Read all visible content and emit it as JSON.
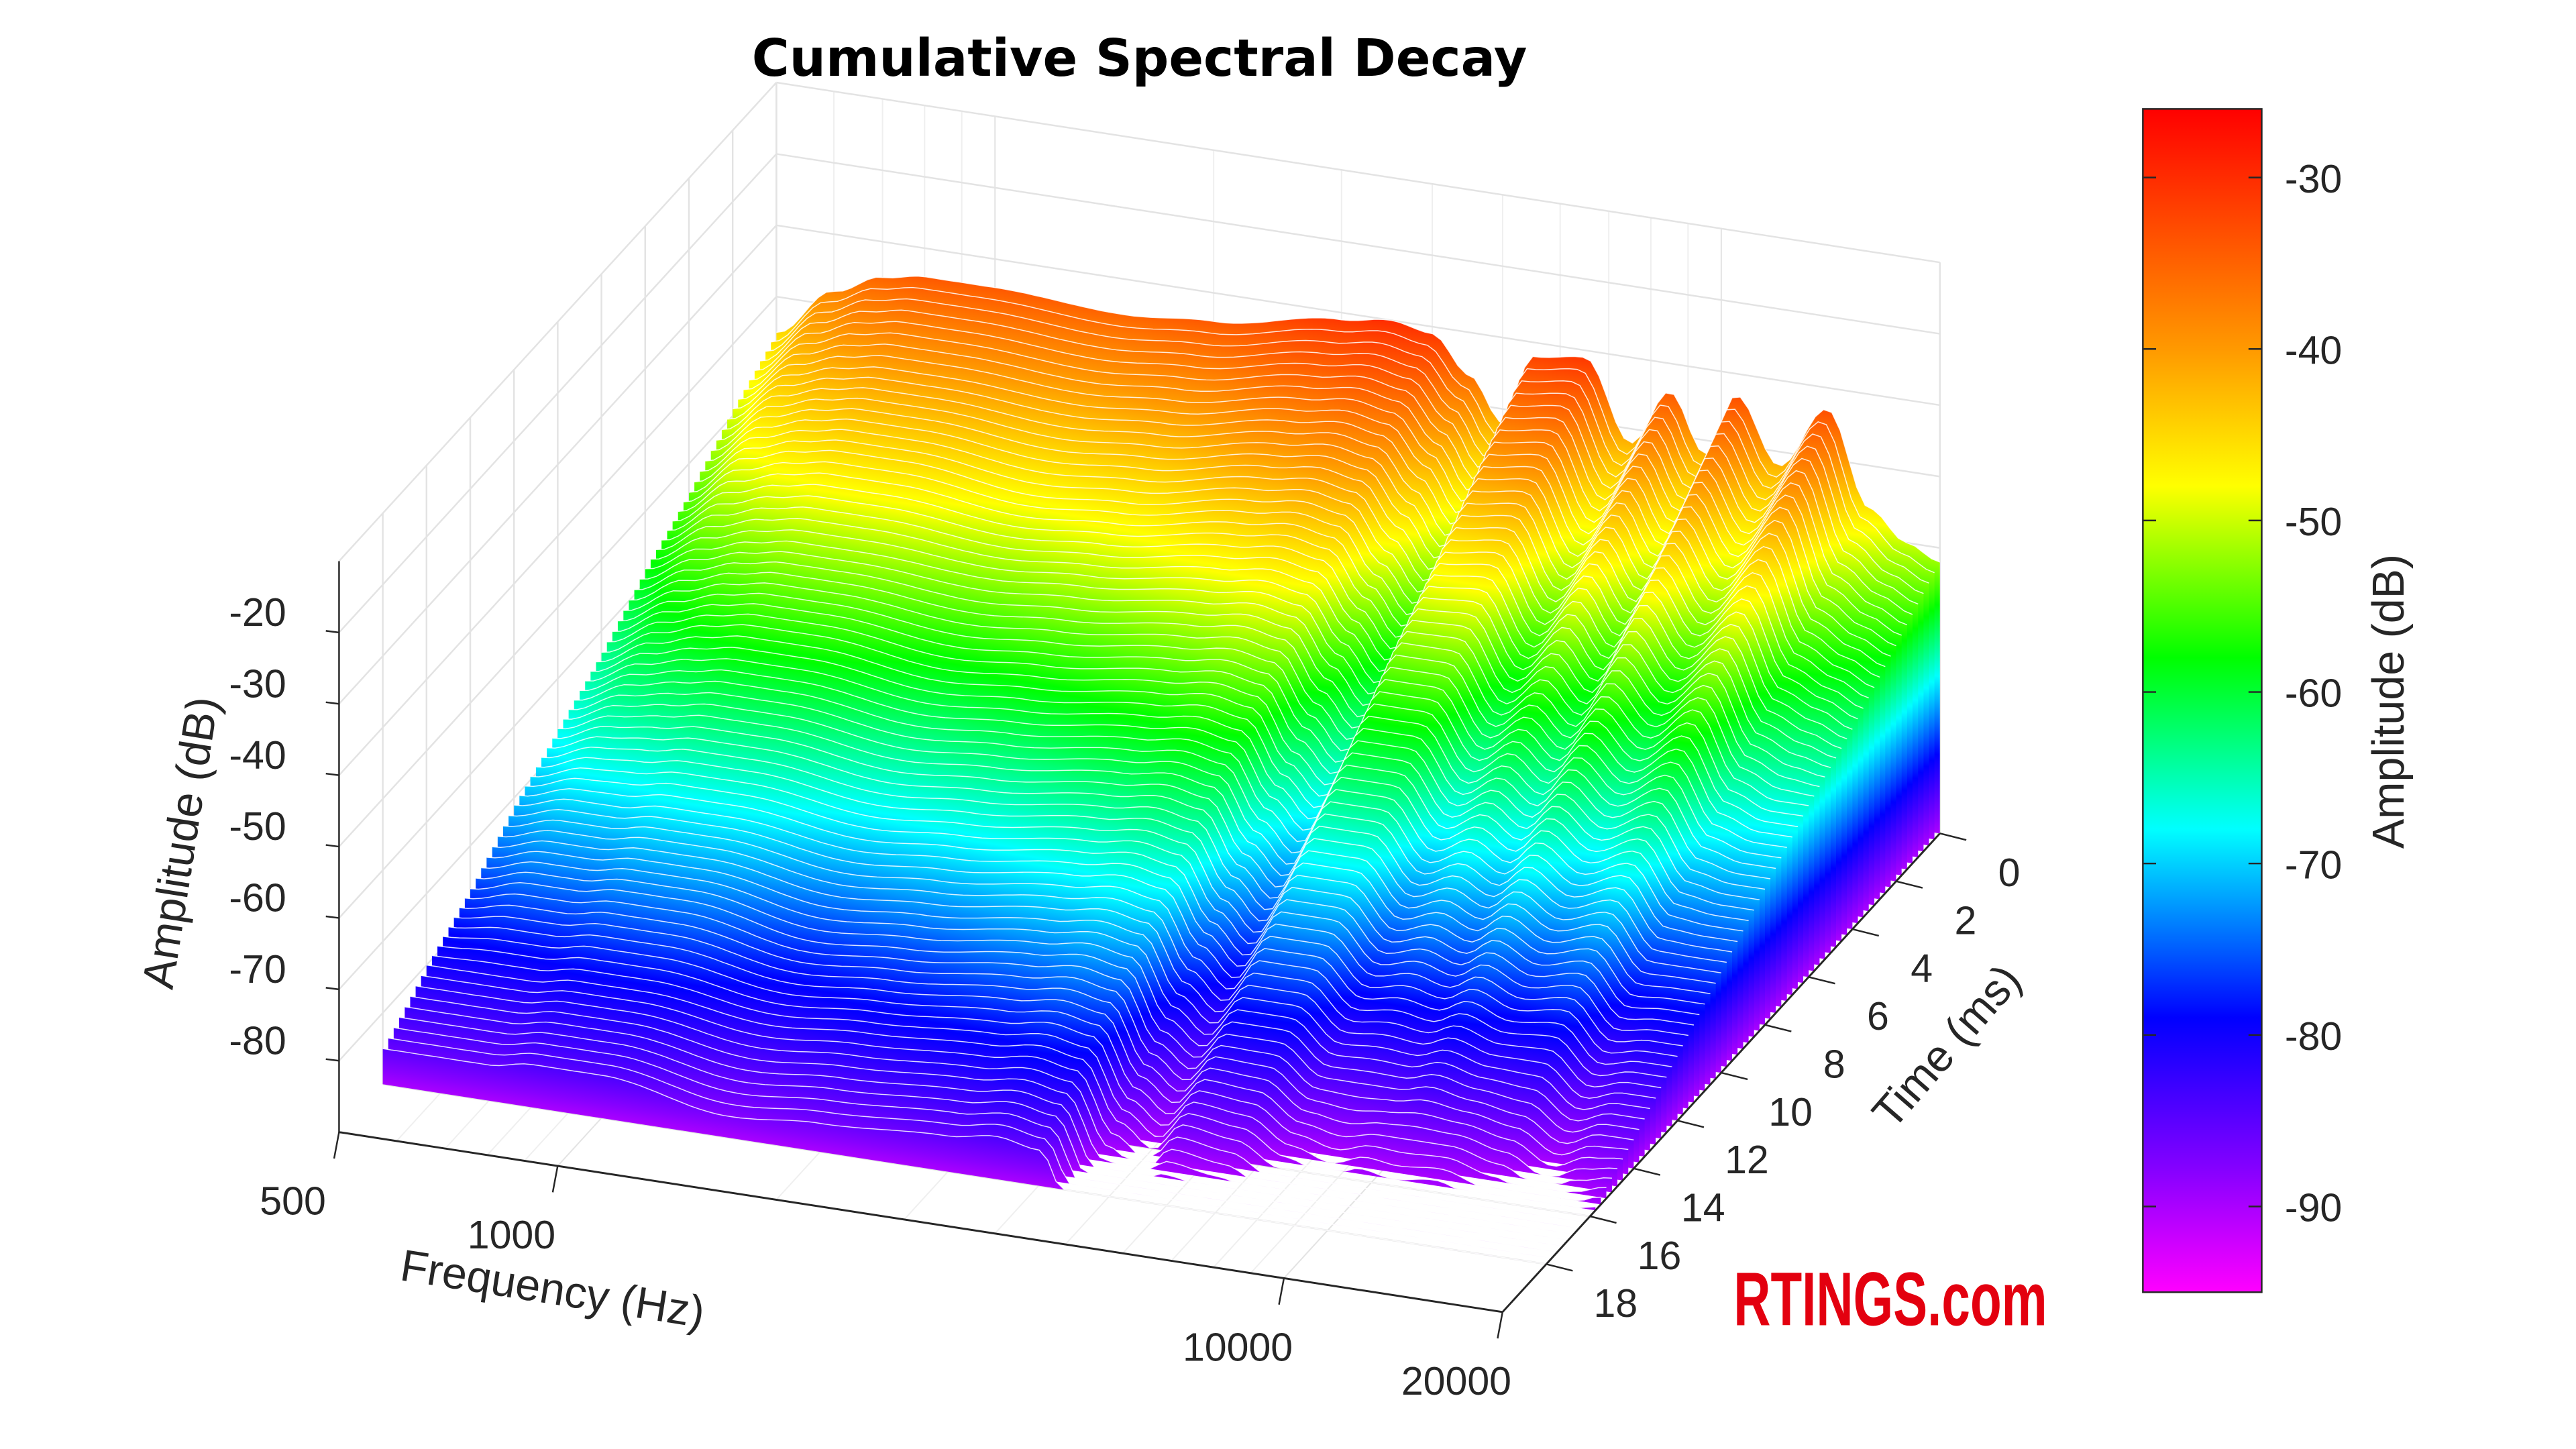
{
  "chart_data": {
    "type": "surface-waterfall",
    "title": "Cumulative Spectral Decay",
    "xlabel": "Frequency (Hz)",
    "ylabel": "Time (ms)",
    "zlabel": "Amplitude (dB)",
    "xscale": "log",
    "xlim": [
      500,
      20000
    ],
    "ylim": [
      0,
      20
    ],
    "zlim": [
      -90,
      -10
    ],
    "x_ticks": [
      "500",
      "1000",
      "10000",
      "20000"
    ],
    "x_tick_values": [
      500,
      1000,
      10000,
      20000
    ],
    "y_ticks": [
      "0",
      "2",
      "4",
      "6",
      "8",
      "10",
      "12",
      "14",
      "16",
      "18"
    ],
    "y_tick_values": [
      0,
      2,
      4,
      6,
      8,
      10,
      12,
      14,
      16,
      18
    ],
    "z_ticks": [
      "-20",
      "-30",
      "-40",
      "-50",
      "-60",
      "-70",
      "-80"
    ],
    "z_tick_values": [
      -20,
      -30,
      -40,
      -50,
      -60,
      -70,
      -80
    ],
    "grid": true,
    "frequencies": [
      500,
      600,
      700,
      800,
      1000,
      1500,
      2000,
      3000,
      3500,
      4000,
      4500,
      5000,
      5500,
      6500,
      7500,
      8500,
      9500,
      10500,
      12000,
      14000,
      16000,
      18000,
      20000
    ],
    "times": [
      0,
      2,
      4,
      6,
      8,
      10,
      12,
      14,
      16,
      18
    ],
    "amplitudes": [
      [
        -45,
        -38,
        -35,
        -34,
        -34,
        -35,
        -34,
        -31,
        -30,
        -31,
        -36,
        -42,
        -32,
        -31,
        -42,
        -34,
        -42,
        -33,
        -42,
        -33,
        -46,
        -50,
        -52
      ],
      [
        -49,
        -43,
        -41,
        -40,
        -40,
        -41,
        -40,
        -37,
        -36,
        -37,
        -42,
        -48,
        -39,
        -38,
        -48,
        -41,
        -48,
        -40,
        -48,
        -40,
        -52,
        -55,
        -57
      ],
      [
        -54,
        -48,
        -46,
        -45,
        -45,
        -47,
        -46,
        -43,
        -42,
        -43,
        -49,
        -54,
        -46,
        -45,
        -54,
        -48,
        -54,
        -47,
        -54,
        -48,
        -58,
        -60,
        -62
      ],
      [
        -58,
        -54,
        -52,
        -51,
        -51,
        -52,
        -51,
        -49,
        -48,
        -49,
        -55,
        -60,
        -52,
        -52,
        -60,
        -56,
        -60,
        -55,
        -60,
        -55,
        -64,
        -66,
        -66
      ],
      [
        -63,
        -59,
        -57,
        -56,
        -56,
        -58,
        -57,
        -55,
        -54,
        -55,
        -62,
        -66,
        -59,
        -59,
        -66,
        -63,
        -66,
        -62,
        -66,
        -63,
        -70,
        -71,
        -71
      ],
      [
        -67,
        -64,
        -63,
        -62,
        -62,
        -64,
        -63,
        -61,
        -60,
        -61,
        -68,
        -72,
        -66,
        -66,
        -72,
        -70,
        -72,
        -69,
        -72,
        -70,
        -76,
        -76,
        -76
      ],
      [
        -71,
        -69,
        -69,
        -68,
        -68,
        -70,
        -69,
        -67,
        -66,
        -67,
        -74,
        -78,
        -73,
        -73,
        -78,
        -77,
        -78,
        -76,
        -78,
        -77,
        -82,
        -81,
        -81
      ],
      [
        -76,
        -74,
        -74,
        -73,
        -73,
        -76,
        -75,
        -73,
        -72,
        -73,
        -81,
        -84,
        -80,
        -80,
        -84,
        -84,
        -84,
        -83,
        -84,
        -85,
        -88,
        -86,
        -86
      ],
      [
        -80,
        -80,
        -80,
        -79,
        -79,
        -81,
        -80,
        -79,
        -78,
        -79,
        -87,
        -90,
        -86,
        -87,
        -90,
        -92,
        -90,
        -91,
        -90,
        -92,
        -94,
        -92,
        -90
      ],
      [
        -85,
        -85,
        -85,
        -84,
        -84,
        -87,
        -86,
        -85,
        -84,
        -85,
        -94,
        -96,
        -93,
        -94,
        -96,
        -99,
        -96,
        -98,
        -96,
        -100,
        -100,
        -97,
        -95
      ]
    ],
    "colorbar": {
      "label": "Amplitude (dB)",
      "range": [
        -95,
        -26
      ],
      "ticks": [
        "-30",
        "-40",
        "-50",
        "-60",
        "-70",
        "-80",
        "-90"
      ],
      "tick_values": [
        -30,
        -40,
        -50,
        -60,
        -70,
        -80,
        -90
      ],
      "colormap": [
        {
          "value": -26,
          "color": "#ff0000"
        },
        {
          "value": -40,
          "color": "#ff9900"
        },
        {
          "value": -48,
          "color": "#ffff00"
        },
        {
          "value": -58,
          "color": "#00ff00"
        },
        {
          "value": -68,
          "color": "#00ffff"
        },
        {
          "value": -79,
          "color": "#0000ff"
        },
        {
          "value": -88,
          "color": "#8800ff"
        },
        {
          "value": -95,
          "color": "#ff00ff"
        }
      ]
    }
  },
  "logo": {
    "text": "RTINGS.com",
    "color": "#e3000f"
  }
}
